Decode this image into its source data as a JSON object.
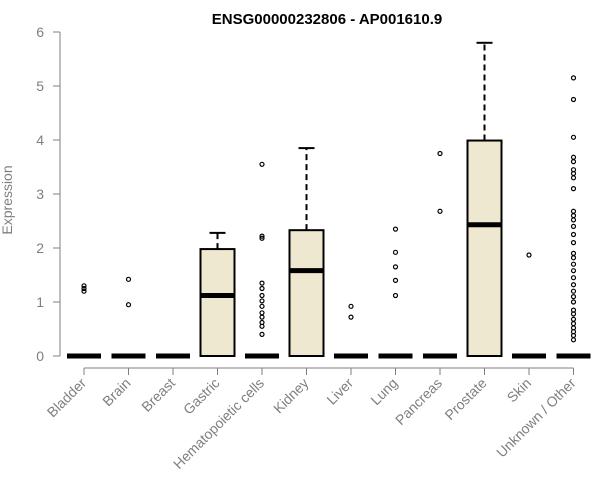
{
  "chart_data": {
    "type": "boxplot",
    "title": "ENSG00000232806 - AP001610.9",
    "xlabel": "",
    "ylabel": "Expression",
    "ylim": [
      0,
      6
    ],
    "yticks": [
      0,
      1,
      2,
      3,
      4,
      5,
      6
    ],
    "grid": false,
    "legend": "none",
    "colors": {
      "box_fill": "#efe8d0",
      "stroke": "#000000",
      "axis_text": "#7f7f7f"
    },
    "categories": [
      "Bladder",
      "Brain",
      "Breast",
      "Gastric",
      "Hematopoietic cells",
      "Kidney",
      "Liver",
      "Lung",
      "Pancreas",
      "Prostate",
      "Skin",
      "Unknown / Other"
    ],
    "boxes": [
      {
        "category": "Bladder",
        "q1": 0,
        "median": 0,
        "q3": 0,
        "whisker_low": 0,
        "whisker_high": 0,
        "outliers": [
          1.2,
          1.25,
          1.3
        ]
      },
      {
        "category": "Brain",
        "q1": 0,
        "median": 0,
        "q3": 0,
        "whisker_low": 0,
        "whisker_high": 0,
        "outliers": [
          0.95,
          1.42
        ]
      },
      {
        "category": "Breast",
        "q1": 0,
        "median": 0,
        "q3": 0,
        "whisker_low": 0,
        "whisker_high": 0,
        "outliers": []
      },
      {
        "category": "Gastric",
        "q1": 0,
        "median": 1.12,
        "q3": 1.98,
        "whisker_low": 0,
        "whisker_high": 2.28,
        "outliers": []
      },
      {
        "category": "Hematopoietic cells",
        "q1": 0,
        "median": 0,
        "q3": 0,
        "whisker_low": 0,
        "whisker_high": 0,
        "outliers": [
          0.4,
          0.55,
          0.62,
          0.72,
          0.8,
          0.92,
          1.02,
          1.12,
          1.25,
          1.35,
          2.18,
          2.22,
          3.55
        ]
      },
      {
        "category": "Kidney",
        "q1": 0,
        "median": 1.58,
        "q3": 2.33,
        "whisker_low": 0,
        "whisker_high": 3.85,
        "outliers": []
      },
      {
        "category": "Liver",
        "q1": 0,
        "median": 0,
        "q3": 0,
        "whisker_low": 0,
        "whisker_high": 0,
        "outliers": [
          0.72,
          0.92
        ]
      },
      {
        "category": "Lung",
        "q1": 0,
        "median": 0,
        "q3": 0,
        "whisker_low": 0,
        "whisker_high": 0,
        "outliers": [
          1.12,
          1.4,
          1.65,
          1.92,
          2.35
        ]
      },
      {
        "category": "Pancreas",
        "q1": 0,
        "median": 0,
        "q3": 0,
        "whisker_low": 0,
        "whisker_high": 0,
        "outliers": [
          2.68,
          3.75
        ]
      },
      {
        "category": "Prostate",
        "q1": 0,
        "median": 2.43,
        "q3": 3.99,
        "whisker_low": 0,
        "whisker_high": 5.8,
        "outliers": []
      },
      {
        "category": "Skin",
        "q1": 0,
        "median": 0,
        "q3": 0,
        "whisker_low": 0,
        "whisker_high": 0,
        "outliers": [
          1.87
        ]
      },
      {
        "category": "Unknown / Other",
        "q1": 0,
        "median": 0,
        "q3": 0,
        "whisker_low": 0,
        "whisker_high": 0,
        "outliers": [
          0.3,
          0.38,
          0.45,
          0.52,
          0.6,
          0.68,
          0.78,
          0.85,
          1.0,
          1.1,
          1.2,
          1.32,
          1.45,
          1.58,
          1.7,
          1.82,
          1.9,
          2.1,
          2.25,
          2.4,
          2.52,
          2.6,
          2.68,
          3.1,
          3.3,
          3.38,
          3.45,
          3.6,
          3.68,
          4.05,
          4.75,
          5.15
        ]
      }
    ]
  }
}
